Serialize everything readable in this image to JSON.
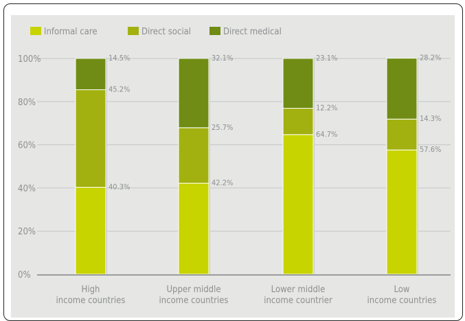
{
  "chart_data": {
    "type": "bar",
    "stacked": true,
    "grid": true,
    "legend_position": "top-left",
    "title": "",
    "xlabel": "",
    "ylabel": "",
    "ylim": [
      0,
      100
    ],
    "y_ticks": [
      "0%",
      "20%",
      "40%",
      "60%",
      "80%",
      "100%"
    ],
    "categories": [
      [
        "High",
        "income countries"
      ],
      [
        "Upper middle",
        "income countries"
      ],
      [
        "Lower middle",
        "income countrier"
      ],
      [
        "Low",
        "income countries"
      ]
    ],
    "series": [
      {
        "name": "Informal care",
        "color": "#c8d400",
        "values": [
          40.3,
          42.2,
          64.7,
          57.6
        ],
        "labels": [
          "40.3%",
          "42.2%",
          "64.7%",
          "57.6%"
        ]
      },
      {
        "name": "Direct social",
        "color": "#a2b110",
        "values": [
          45.2,
          25.7,
          12.2,
          14.3
        ],
        "labels": [
          "45.2%",
          "25.7%",
          "12.2%",
          "14.3%"
        ]
      },
      {
        "name": "Direct medical",
        "color": "#708c14",
        "values": [
          14.5,
          32.1,
          23.1,
          28.2
        ],
        "labels": [
          "14.5%",
          "32.1%",
          "23.1%",
          "28.2%"
        ]
      }
    ],
    "label_color": "#8c8f90",
    "grid_color": "#c4c7c8"
  }
}
